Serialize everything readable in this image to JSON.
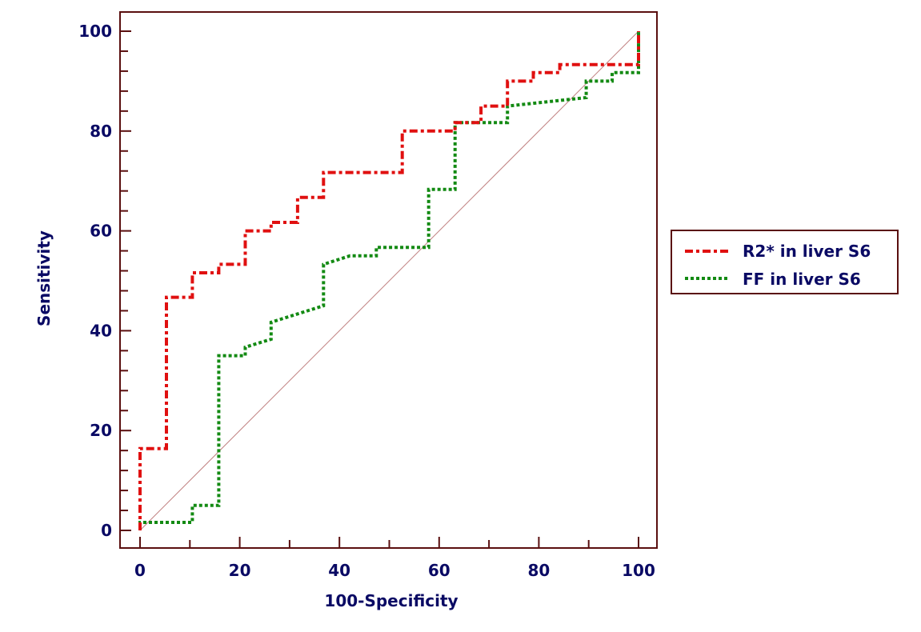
{
  "chart_data": {
    "type": "line",
    "xlabel": "100-Specificity",
    "ylabel": "Sensitivity",
    "xlim": [
      0,
      100
    ],
    "ylim": [
      0,
      100
    ],
    "x_ticks": [
      0,
      20,
      40,
      60,
      80,
      100
    ],
    "y_ticks": [
      0,
      20,
      40,
      60,
      80,
      100
    ],
    "x_tick_labels": [
      "0",
      "20",
      "40",
      "60",
      "80",
      "100"
    ],
    "y_tick_labels": [
      "0",
      "20",
      "40",
      "60",
      "80",
      "100"
    ],
    "grid": false,
    "legend_position": "right",
    "reference_line": {
      "from": [
        0,
        0
      ],
      "to": [
        100,
        100
      ],
      "color": "#c08080"
    },
    "frame_color": "#5a0f0f",
    "series": [
      {
        "name": "R2* in liver S6",
        "color": "#e01010",
        "style": "dash-dot",
        "points": [
          [
            0,
            0
          ],
          [
            0,
            16.4
          ],
          [
            5.3,
            16.4
          ],
          [
            5.3,
            46.7
          ],
          [
            10.5,
            46.7
          ],
          [
            10.5,
            51.6
          ],
          [
            15.8,
            51.6
          ],
          [
            15.8,
            53.3
          ],
          [
            21.1,
            53.3
          ],
          [
            21.1,
            60.0
          ],
          [
            26.3,
            60.0
          ],
          [
            26.3,
            61.7
          ],
          [
            31.6,
            61.7
          ],
          [
            31.6,
            66.7
          ],
          [
            36.8,
            66.7
          ],
          [
            36.8,
            71.7
          ],
          [
            52.6,
            71.7
          ],
          [
            52.6,
            80.0
          ],
          [
            63.2,
            80.0
          ],
          [
            63.2,
            81.7
          ],
          [
            68.4,
            81.7
          ],
          [
            68.4,
            85.0
          ],
          [
            73.7,
            85.0
          ],
          [
            73.7,
            90.0
          ],
          [
            78.9,
            90.0
          ],
          [
            78.9,
            91.7
          ],
          [
            84.2,
            91.7
          ],
          [
            84.2,
            93.3
          ],
          [
            100,
            93.3
          ],
          [
            100,
            100
          ]
        ]
      },
      {
        "name": "FF in liver S6",
        "color": "#138a13",
        "style": "dotted",
        "points": [
          [
            0,
            0
          ],
          [
            0,
            1.6
          ],
          [
            10.5,
            1.6
          ],
          [
            10.5,
            5.0
          ],
          [
            15.8,
            5.0
          ],
          [
            15.8,
            35.0
          ],
          [
            21.1,
            35.0
          ],
          [
            21.1,
            36.7
          ],
          [
            26.3,
            38.3
          ],
          [
            26.3,
            41.7
          ],
          [
            36.8,
            45.0
          ],
          [
            36.8,
            53.3
          ],
          [
            42.1,
            55.0
          ],
          [
            47.4,
            55.0
          ],
          [
            47.4,
            56.7
          ],
          [
            57.9,
            56.7
          ],
          [
            57.9,
            68.3
          ],
          [
            63.2,
            68.3
          ],
          [
            63.2,
            81.7
          ],
          [
            73.7,
            81.7
          ],
          [
            73.7,
            85.0
          ],
          [
            89.5,
            86.7
          ],
          [
            89.5,
            90.0
          ],
          [
            94.7,
            90.0
          ],
          [
            94.7,
            91.7
          ],
          [
            100,
            91.7
          ],
          [
            100,
            100
          ]
        ]
      }
    ]
  }
}
